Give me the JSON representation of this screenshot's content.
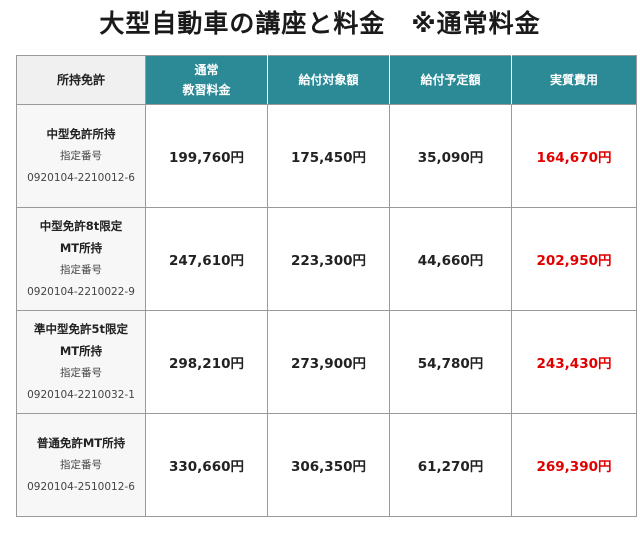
{
  "title": "大型自動車の講座と料金　※通常料金",
  "headers": {
    "license": "所持免許",
    "tuition_line1": "通常",
    "tuition_line2": "教習料金",
    "eligible": "給付対象額",
    "benefit": "給付予定額",
    "net": "実質費用"
  },
  "rows": [
    {
      "license_line1": "中型免許所持",
      "license_line2": "",
      "designation_label": "指定番号",
      "designation_number": "0920104-2210012-6",
      "tuition": "199,760円",
      "eligible": "175,450円",
      "benefit": "35,090円",
      "net": "164,670円"
    },
    {
      "license_line1": "中型免許8t限定",
      "license_line2": "MT所持",
      "designation_label": "指定番号",
      "designation_number": "0920104-2210022-9",
      "tuition": "247,610円",
      "eligible": "223,300円",
      "benefit": "44,660円",
      "net": "202,950円"
    },
    {
      "license_line1": "準中型免許5t限定",
      "license_line2": "MT所持",
      "designation_label": "指定番号",
      "designation_number": "0920104-2210032-1",
      "tuition": "298,210円",
      "eligible": "273,900円",
      "benefit": "54,780円",
      "net": "243,430円"
    },
    {
      "license_line1": "普通免許MT所持",
      "license_line2": "",
      "designation_label": "指定番号",
      "designation_number": "0920104-2510012-6",
      "tuition": "330,660円",
      "eligible": "306,350円",
      "benefit": "61,270円",
      "net": "269,390円"
    }
  ],
  "colors": {
    "header_accent": "#2b8a96",
    "net_cost": "#e00000"
  }
}
